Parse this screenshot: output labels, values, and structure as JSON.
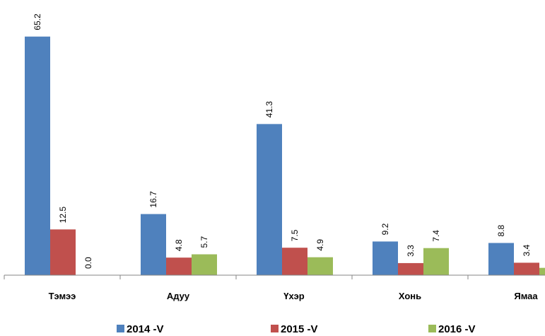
{
  "chart_data": {
    "type": "bar",
    "categories": [
      "Тэмээ",
      "Адуу",
      "Үхэр",
      "Хонь",
      "Ямаа"
    ],
    "series": [
      {
        "name": "2014 -V",
        "color": "#4f81bd",
        "values": [
          65.2,
          16.7,
          41.3,
          9.2,
          8.8
        ],
        "value_labels": [
          "65.2",
          "16.7",
          "41.3",
          "9.2",
          "8.8"
        ]
      },
      {
        "name": "2015 -V",
        "color": "#c0504d",
        "values": [
          12.5,
          4.8,
          7.5,
          3.3,
          3.4
        ],
        "value_labels": [
          "12.5",
          "4.8",
          "7.5",
          "3.3",
          "3.4"
        ]
      },
      {
        "name": "2016 -V",
        "color": "#9bbb59",
        "values": [
          0,
          5.7,
          4.9,
          7.4,
          2
        ],
        "value_labels": [
          "0.0",
          "5.7",
          "4.9",
          "7.4",
          ""
        ]
      }
    ],
    "ylim": [
      0,
      75
    ],
    "legend": "bottom"
  }
}
